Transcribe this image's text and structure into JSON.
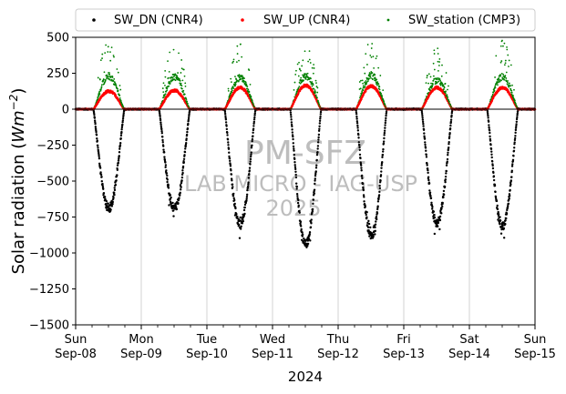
{
  "chart_data": {
    "type": "scatter",
    "title": "",
    "xlabel": "2024",
    "ylabel_main": "Solar radiation (",
    "ylabel_unit": "Wm",
    "ylabel_exp": "−2",
    "ylabel_close": ")",
    "ylim": [
      -1500,
      500
    ],
    "yticks": [
      500,
      250,
      0,
      -250,
      -500,
      -750,
      -1000,
      -1250,
      -1500
    ],
    "ytick_labels": [
      "500",
      "250",
      "0",
      "−250",
      "−500",
      "−750",
      "−1000",
      "−1250",
      "−1500"
    ],
    "x_range_days": [
      "2024-09-08",
      "2024-09-15"
    ],
    "xticks": [
      {
        "day": "Sun",
        "date": "Sep-08"
      },
      {
        "day": "Mon",
        "date": "Sep-09"
      },
      {
        "day": "Tue",
        "date": "Sep-10"
      },
      {
        "day": "Wed",
        "date": "Sep-11"
      },
      {
        "day": "Thu",
        "date": "Sep-12"
      },
      {
        "day": "Fri",
        "date": "Sep-13"
      },
      {
        "day": "Sat",
        "date": "Sep-14"
      },
      {
        "day": "Sun",
        "date": "Sep-15"
      }
    ],
    "grid": "x-major",
    "legend_position": "top",
    "series": [
      {
        "name": "SW_DN (CNR4)",
        "color": "#000000",
        "daily_min": [
          -690,
          -690,
          -800,
          -940,
          -880,
          -790,
          -810
        ]
      },
      {
        "name": "SW_UP (CNR4)",
        "color": "#ff0000",
        "daily_max": [
          125,
          130,
          150,
          165,
          160,
          150,
          150
        ]
      },
      {
        "name": "SW_station (CMP3)",
        "color": "#008000",
        "daily_max": [
          490,
          480,
          460,
          490,
          500,
          430,
          480
        ]
      }
    ],
    "sunrise_hour": 6.5,
    "sunset_hour": 17.8,
    "watermark": [
      "PM-SFZ",
      "LAB MICRO - IAG-USP",
      "2025"
    ]
  }
}
